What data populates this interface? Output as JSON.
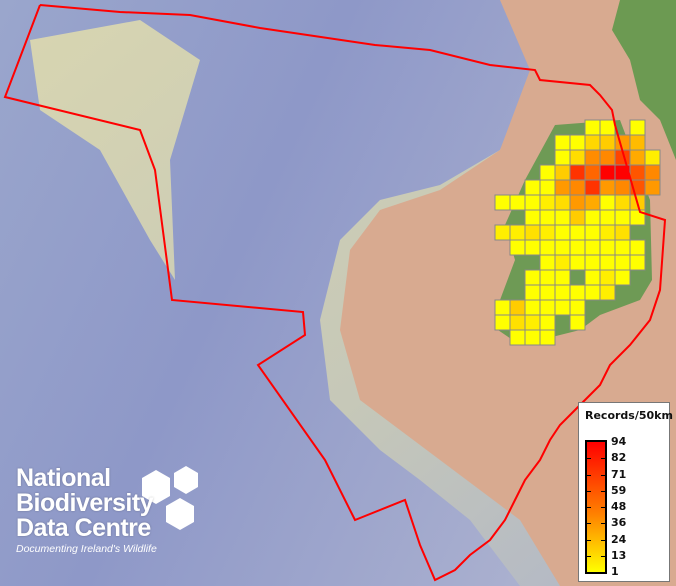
{
  "map": {
    "boundary_color": "#ff0000",
    "grid_stroke": "#888888",
    "resolution": "50km"
  },
  "legend": {
    "title": "Records/50km",
    "labels": [
      "94",
      "82",
      "71",
      "59",
      "48",
      "36",
      "24",
      "13",
      "1"
    ],
    "min_color": "#ffff00",
    "mid_color": "#ff8000",
    "max_color": "#ff0000"
  },
  "logo": {
    "lines": [
      "National",
      "Biodiversity",
      "Data Centre"
    ],
    "tagline": "Documenting Ireland's Wildlife"
  },
  "grid": {
    "rows": [
      {
        "cols": [
          6,
          7,
          9
        ],
        "colors": [
          "#ffff00",
          "#ffff00",
          "#ffff00"
        ]
      },
      {
        "cols": [
          4,
          5,
          6,
          7,
          8,
          9
        ],
        "colors": [
          "#ffff00",
          "#ffff00",
          "#ffd700",
          "#ffcc00",
          "#ff9900",
          "#ffbb00"
        ]
      },
      {
        "cols": [
          4,
          5,
          6,
          7,
          8,
          9,
          10
        ],
        "colors": [
          "#ffff00",
          "#ffdd00",
          "#ff8c00",
          "#ff8800",
          "#ff4400",
          "#ffaa00",
          "#ffee00"
        ]
      },
      {
        "cols": [
          3,
          4,
          5,
          6,
          7,
          8,
          9,
          10
        ],
        "colors": [
          "#ffff00",
          "#ffcc00",
          "#ff3300",
          "#ff6600",
          "#ff0000",
          "#ff0000",
          "#ff5500",
          "#ff8800"
        ]
      },
      {
        "cols": [
          2,
          3,
          4,
          5,
          6,
          7,
          8,
          9,
          10
        ],
        "colors": [
          "#ffff00",
          "#ffff00",
          "#ff9900",
          "#ff8800",
          "#ff3300",
          "#ff9900",
          "#ff8800",
          "#ff5500",
          "#ff9900"
        ]
      },
      {
        "cols": [
          0,
          1,
          2,
          3,
          4,
          5,
          6,
          7,
          8,
          9
        ],
        "colors": [
          "#ffff00",
          "#ffff00",
          "#ffff00",
          "#ffee00",
          "#ffdd00",
          "#ff9900",
          "#ffaa00",
          "#ffff00",
          "#ffdd00",
          "#ffcc00"
        ]
      },
      {
        "cols": [
          2,
          3,
          4,
          5,
          6,
          7,
          8,
          9
        ],
        "colors": [
          "#ffff00",
          "#ffff00",
          "#ffff00",
          "#ffcc00",
          "#ffff00",
          "#ffff00",
          "#ffff00",
          "#ffff00"
        ]
      },
      {
        "cols": [
          0,
          1,
          2,
          3,
          4,
          5,
          6,
          7,
          8
        ],
        "colors": [
          "#ffee00",
          "#ffee00",
          "#ffe000",
          "#ffee00",
          "#ffff00",
          "#ffff00",
          "#ffff00",
          "#ffee00",
          "#ffe000"
        ]
      },
      {
        "cols": [
          1,
          2,
          3,
          4,
          5,
          6,
          7,
          8,
          9
        ],
        "colors": [
          "#ffff00",
          "#ffff00",
          "#ffff00",
          "#ffff00",
          "#ffff00",
          "#ffff00",
          "#ffff00",
          "#ffff00",
          "#ffff00"
        ]
      },
      {
        "cols": [
          3,
          4,
          5,
          6,
          7,
          8,
          9
        ],
        "colors": [
          "#ffff00",
          "#ffee00",
          "#ffff00",
          "#ffff00",
          "#ffff00",
          "#ffff00",
          "#ffff00"
        ]
      },
      {
        "cols": [
          2,
          3,
          4,
          6,
          7,
          8
        ],
        "colors": [
          "#ffff00",
          "#ffff00",
          "#ffff00",
          "#ffff00",
          "#ffee00",
          "#ffff00"
        ]
      },
      {
        "cols": [
          2,
          3,
          4,
          5,
          6,
          7
        ],
        "colors": [
          "#ffff00",
          "#ffff00",
          "#ffff00",
          "#ffff00",
          "#ffff00",
          "#ffee00"
        ]
      },
      {
        "cols": [
          0,
          1,
          2,
          3,
          4,
          5
        ],
        "colors": [
          "#ffff00",
          "#ffcc00",
          "#ffff00",
          "#ffff00",
          "#ffff00",
          "#ffff00"
        ]
      },
      {
        "cols": [
          0,
          1,
          2,
          3,
          5
        ],
        "colors": [
          "#ffff00",
          "#ffe000",
          "#ffee00",
          "#ffff00",
          "#ffff00"
        ]
      },
      {
        "cols": [
          1,
          2,
          3
        ],
        "colors": [
          "#ffff00",
          "#ffff00",
          "#ffff00"
        ]
      }
    ]
  }
}
